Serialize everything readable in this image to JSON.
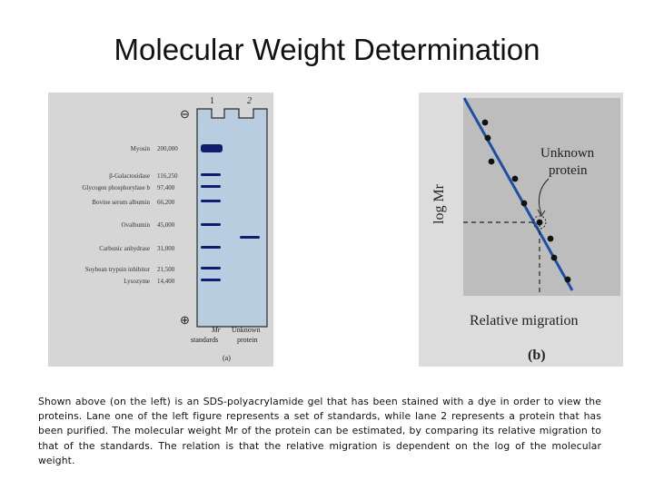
{
  "title": "Molecular Weight Determination",
  "gel": {
    "lane_numbers": [
      "1",
      "2"
    ],
    "top_electrode": "⊖",
    "bottom_electrode": "⊕",
    "standards": [
      {
        "name": "Myosin",
        "mw": "200,000"
      },
      {
        "name": "β-Galactosidase",
        "mw": "116,250"
      },
      {
        "name": "Glycogen phosphorylase b",
        "mw": "97,400"
      },
      {
        "name": "Bovine serum albumin",
        "mw": "66,200"
      },
      {
        "name": "Ovalbumin",
        "mw": "45,000"
      },
      {
        "name": "Carbonic anhydrase",
        "mw": "31,000"
      },
      {
        "name": "Soybean trypsin inhibitor",
        "mw": "21,500"
      },
      {
        "name": "Lysozyme",
        "mw": "14,400"
      }
    ],
    "lane1_label_line1": "Mr",
    "lane1_label_line2": "standards",
    "lane2_label_line1": "Unknown",
    "lane2_label_line2": "protein",
    "panel_label": "(a)"
  },
  "plot": {
    "ylabel": "log Mr",
    "xlabel": "Relative migration",
    "annotation_line1": "Unknown",
    "annotation_line2": "protein",
    "panel_label": "(b)",
    "line_color": "#1d4fa8"
  },
  "caption": "Shown above (on the left) is an SDS-polyacrylamide gel that has been stained with a dye in order to view the proteins.  Lane one of the left figure represents a set of standards, while lane 2 represents a protein that has been purified.  The molecular weight Mr of the protein can be estimated, by comparing its relative migration to that of the standards.  The relation is that the relative migration is dependent on the log of the molecular weight."
}
